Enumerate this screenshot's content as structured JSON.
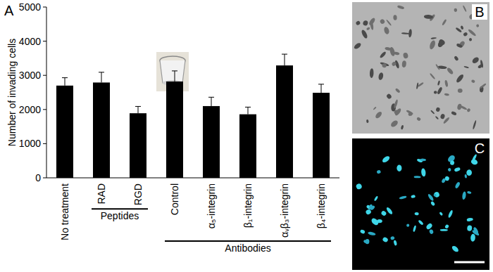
{
  "panels": [
    "A",
    "B",
    "C"
  ],
  "chart_data": {
    "type": "bar",
    "y_label": "Number of invading cells",
    "categories": [
      "No treatment",
      "RAD",
      "RGD",
      "Control",
      "α₅-integrin",
      "β₁-integrin",
      "αᵥβ₃-integrin",
      "β₄-integrin"
    ],
    "values": [
      2700,
      2790,
      1890,
      2820,
      2100,
      1860,
      3290,
      2490
    ],
    "errors": [
      230,
      300,
      200,
      310,
      260,
      210,
      330,
      250
    ],
    "groups": [
      {
        "label": "Peptides",
        "start": 1,
        "end": 2
      },
      {
        "label": "Antibodies",
        "start": 3,
        "end": 7
      }
    ],
    "color": "#000000",
    "ylim": [
      0,
      5000
    ],
    "yticks": [
      0,
      1000,
      2000,
      3000,
      4000,
      5000
    ],
    "grid": false
  }
}
